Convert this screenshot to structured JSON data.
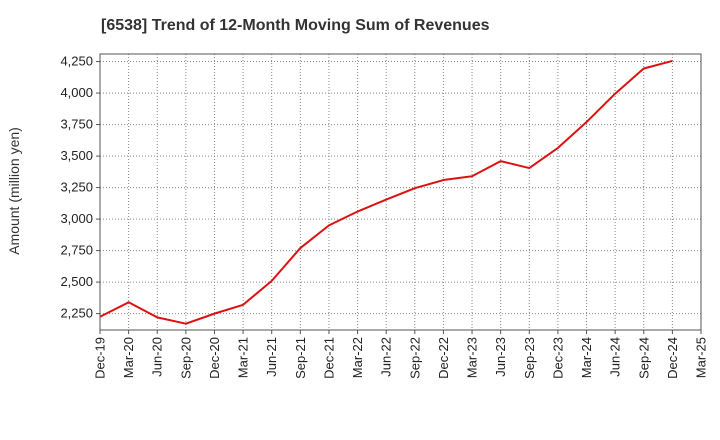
{
  "chart_data": {
    "type": "line",
    "title": "[6538]  Trend of 12-Month Moving Sum of Revenues",
    "xlabel": "",
    "ylabel": "Amount (million yen)",
    "ylim": [
      2120,
      4310
    ],
    "yticks": [
      2250,
      2500,
      2750,
      3000,
      3250,
      3500,
      3750,
      4000,
      4250
    ],
    "ytick_labels": [
      "2,250",
      "2,500",
      "2,750",
      "3,000",
      "3,250",
      "3,500",
      "3,750",
      "4,000",
      "4,250"
    ],
    "xtick_labels": [
      "Dec-19",
      "Mar-20",
      "Jun-20",
      "Sep-20",
      "Dec-20",
      "Mar-21",
      "Jun-21",
      "Sep-21",
      "Dec-21",
      "Mar-22",
      "Jun-22",
      "Sep-22",
      "Dec-22",
      "Mar-23",
      "Jun-23",
      "Sep-23",
      "Dec-23",
      "Mar-24",
      "Jun-24",
      "Sep-24",
      "Dec-24",
      "Mar-25"
    ],
    "grid": true,
    "series": [
      {
        "color": "#dd1111",
        "x": [
          "Dec-19",
          "Mar-20",
          "Jun-20",
          "Sep-20",
          "Dec-20",
          "Mar-21",
          "Jun-21",
          "Sep-21",
          "Dec-21",
          "Mar-22",
          "Jun-22",
          "Sep-22",
          "Dec-22",
          "Mar-23",
          "Jun-23",
          "Sep-23",
          "Dec-23",
          "Mar-24",
          "Jun-24",
          "Sep-24",
          "Dec-24"
        ],
        "values": [
          2225,
          2340,
          2220,
          2170,
          2250,
          2320,
          2510,
          2770,
          2950,
          3060,
          3155,
          3245,
          3310,
          3340,
          3460,
          3405,
          3565,
          3770,
          3995,
          4195,
          4255
        ]
      }
    ]
  }
}
